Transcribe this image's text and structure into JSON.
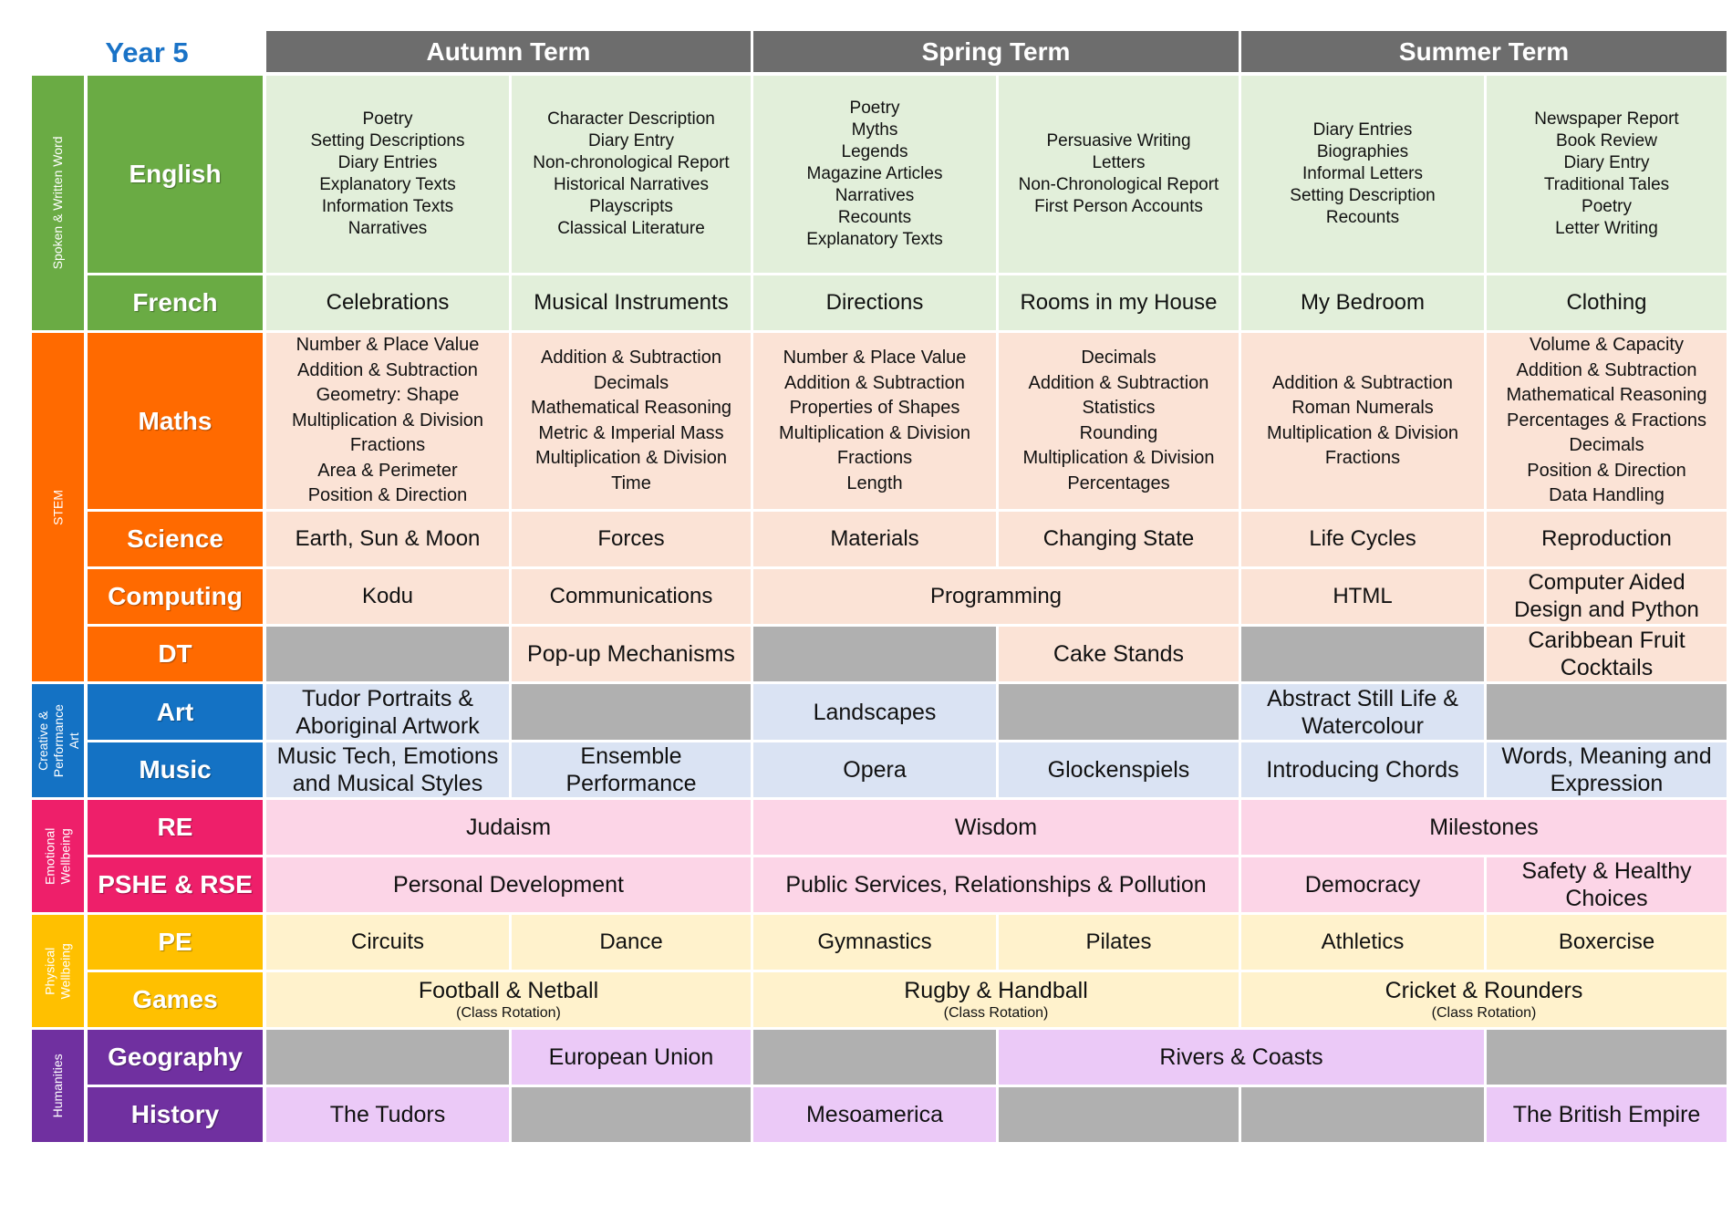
{
  "title": "Year 5",
  "terms": [
    "Autumn Term",
    "Spring Term",
    "Summer Term"
  ],
  "colors": {
    "green": "#6aab44",
    "orange": "#ff6a00",
    "blue": "#1472c4",
    "pink": "#ee1f6a",
    "yellow": "#ffc000",
    "purple": "#7030a0",
    "header": "#6d6d6d",
    "grey": "#b0b0b0",
    "green_light": "#e2efda",
    "orange_light": "#fbe3d6",
    "blue_light": "#dae3f3",
    "pink_light": "#fcd5e7",
    "yellow_light": "#fff2cc",
    "purple_light": "#ebc9f7"
  },
  "groups": [
    {
      "label": "Spoken & Written Word",
      "color": "green"
    },
    {
      "label": "STEM",
      "color": "orange"
    },
    {
      "label": "Creative &\nPerformance\nArt",
      "color": "blue"
    },
    {
      "label": "Emotional\nWellbeing",
      "color": "pink"
    },
    {
      "label": "Physical\nWellbeing",
      "color": "yellow"
    },
    {
      "label": "Humanities",
      "color": "purple"
    }
  ],
  "subjects": [
    {
      "name": "English",
      "color": "green",
      "cells": [
        {
          "text": "Poetry\nSetting Descriptions\nDiary Entries\nExplanatory Texts\nInformation Texts\nNarratives"
        },
        {
          "text": "Character Description\nDiary Entry\nNon-chronological Report\nHistorical Narratives\nPlayscripts\nClassical Literature"
        },
        {
          "text": "Poetry\nMyths\nLegends\nMagazine Articles\nNarratives\nRecounts\nExplanatory Texts"
        },
        {
          "text": "Persuasive Writing\nLetters\nNon-Chronological Report\nFirst Person Accounts"
        },
        {
          "text": "Diary Entries\nBiographies\nInformal Letters\nSetting Description\nRecounts"
        },
        {
          "text": "Newspaper Report\nBook Review\nDiary Entry\nTraditional Tales\nPoetry\nLetter Writing"
        }
      ]
    },
    {
      "name": "French",
      "color": "green",
      "cells": [
        {
          "text": "Celebrations"
        },
        {
          "text": "Musical Instruments"
        },
        {
          "text": "Directions"
        },
        {
          "text": "Rooms in my House"
        },
        {
          "text": "My Bedroom"
        },
        {
          "text": "Clothing"
        }
      ]
    },
    {
      "name": "Maths",
      "color": "orange",
      "cells": [
        {
          "text": "Number & Place Value\nAddition & Subtraction\nGeometry: Shape\nMultiplication & Division\nFractions\nArea & Perimeter\nPosition & Direction"
        },
        {
          "text": "Addition & Subtraction\nDecimals\nMathematical Reasoning\nMetric & Imperial Mass\nMultiplication & Division\nTime"
        },
        {
          "text": "Number & Place Value\nAddition & Subtraction\nProperties of Shapes\nMultiplication & Division\nFractions\nLength"
        },
        {
          "text": "Decimals\nAddition & Subtraction\nStatistics\nRounding\nMultiplication & Division\nPercentages"
        },
        {
          "text": "Addition & Subtraction\nRoman Numerals\nMultiplication & Division\nFractions"
        },
        {
          "text": "Volume & Capacity\nAddition & Subtraction\nMathematical Reasoning\nPercentages & Fractions\nDecimals\nPosition & Direction\nData Handling"
        }
      ]
    },
    {
      "name": "Science",
      "color": "orange",
      "cells": [
        {
          "text": "Earth, Sun & Moon"
        },
        {
          "text": "Forces"
        },
        {
          "text": "Materials"
        },
        {
          "text": "Changing State"
        },
        {
          "text": "Life Cycles"
        },
        {
          "text": "Reproduction"
        }
      ]
    },
    {
      "name": "Computing",
      "color": "orange",
      "cells": [
        {
          "text": "Kodu"
        },
        {
          "text": "Communications"
        },
        {
          "text": "Programming"
        },
        {
          "text": "HTML"
        },
        {
          "text": "Computer Aided\nDesign and Python"
        }
      ]
    },
    {
      "name": "DT",
      "color": "orange",
      "cells": [
        {
          "text": ""
        },
        {
          "text": "Pop-up Mechanisms"
        },
        {
          "text": ""
        },
        {
          "text": "Cake Stands"
        },
        {
          "text": ""
        },
        {
          "text": "Caribbean Fruit\nCocktails"
        }
      ]
    },
    {
      "name": "Art",
      "color": "blue",
      "cells": [
        {
          "text": "Tudor Portraits &\nAboriginal Artwork"
        },
        {
          "text": ""
        },
        {
          "text": "Landscapes"
        },
        {
          "text": ""
        },
        {
          "text": "Abstract Still Life &\nWatercolour"
        },
        {
          "text": ""
        }
      ]
    },
    {
      "name": "Music",
      "color": "blue",
      "cells": [
        {
          "text": "Music Tech, Emotions\nand Musical Styles"
        },
        {
          "text": "Ensemble\nPerformance"
        },
        {
          "text": "Opera"
        },
        {
          "text": "Glockenspiels"
        },
        {
          "text": "Introducing Chords"
        },
        {
          "text": "Words, Meaning and\nExpression"
        }
      ]
    },
    {
      "name": "RE",
      "color": "pink",
      "cells": [
        {
          "text": "Judaism"
        },
        {
          "text": "Wisdom"
        },
        {
          "text": "Milestones"
        }
      ]
    },
    {
      "name": "PSHE & RSE",
      "color": "pink",
      "cells": [
        {
          "text": "Personal Development"
        },
        {
          "text": "Public Services, Relationships & Pollution"
        },
        {
          "text": "Democracy"
        },
        {
          "text": "Safety & Healthy\nChoices"
        }
      ]
    },
    {
      "name": "PE",
      "color": "yellow",
      "cells": [
        {
          "text": "Circuits"
        },
        {
          "text": "Dance"
        },
        {
          "text": "Gymnastics"
        },
        {
          "text": "Pilates"
        },
        {
          "text": "Athletics"
        },
        {
          "text": "Boxercise"
        }
      ]
    },
    {
      "name": "Games",
      "color": "yellow",
      "cells": [
        {
          "text": "Football & Netball",
          "note": "(Class Rotation)"
        },
        {
          "text": "Rugby & Handball",
          "note": "(Class Rotation)"
        },
        {
          "text": "Cricket & Rounders",
          "note": "(Class Rotation)"
        }
      ]
    },
    {
      "name": "Geography",
      "color": "purple",
      "cells": [
        {
          "text": ""
        },
        {
          "text": "European Union"
        },
        {
          "text": ""
        },
        {
          "text": "Rivers & Coasts"
        },
        {
          "text": ""
        }
      ]
    },
    {
      "name": "History",
      "color": "purple",
      "cells": [
        {
          "text": "The Tudors"
        },
        {
          "text": ""
        },
        {
          "text": "Mesoamerica"
        },
        {
          "text": ""
        },
        {
          "text": ""
        },
        {
          "text": "The British Empire"
        }
      ]
    }
  ]
}
